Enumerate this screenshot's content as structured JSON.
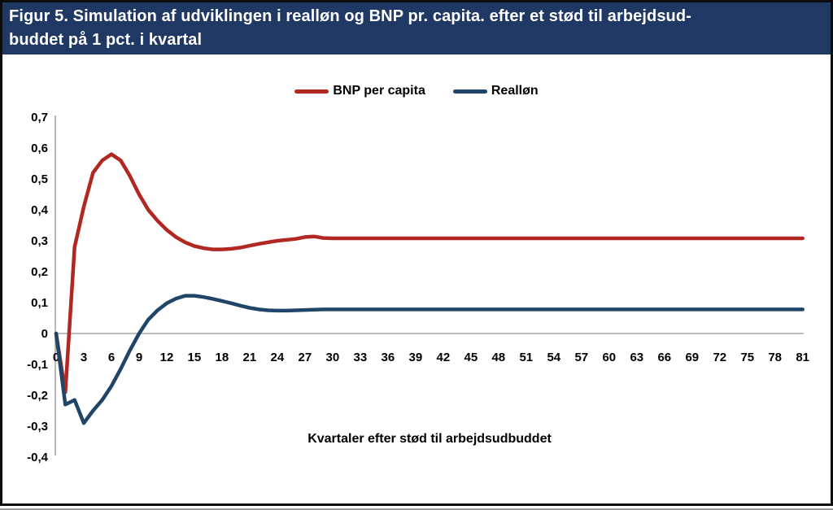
{
  "figure": {
    "title_line1": "Figur 5. Simulation af udviklingen i realløn og BNP pr. capita. efter et stød til arbejdsud-",
    "title_line2": "buddet på 1 pct. i kvartal"
  },
  "colors": {
    "title_bar_background": "#1F3864",
    "title_text": "#ffffff",
    "bnp_line": "#B12822",
    "realloen_line": "#1F4568",
    "axis_line": "#A6A6A6"
  },
  "chart_data": {
    "type": "line",
    "title": "Figur 5. Simulation af udviklingen i realløn og BNP pr. capita. efter et stød til arbejdsudbuddet på 1 pct. i kvartal",
    "xlabel": "Kvartaler efter stød til arbejdsudbuddet",
    "ylabel": "",
    "xlim": [
      0,
      81
    ],
    "ylim": [
      -0.4,
      0.7
    ],
    "grid": false,
    "legend_position": "top-center",
    "decimal_separator": ",",
    "x_ticks": [
      0,
      3,
      6,
      9,
      12,
      15,
      18,
      21,
      24,
      27,
      30,
      33,
      36,
      39,
      42,
      45,
      48,
      51,
      54,
      57,
      60,
      63,
      66,
      69,
      72,
      75,
      78,
      81
    ],
    "y_tick_values": [
      0.7,
      0.6,
      0.5,
      0.4,
      0.3,
      0.2,
      0.1,
      0,
      -0.1,
      -0.2,
      -0.3,
      -0.4
    ],
    "y_tick_labels": [
      "0,7",
      "0,6",
      "0,5",
      "0,4",
      "0,3",
      "0,2",
      "0,1",
      "0",
      "-0,1",
      "-0,2",
      "-0,3",
      "-0,4"
    ],
    "x_step": 1,
    "series": [
      {
        "name": "BNP per capita",
        "color": "#B12822",
        "values": [
          0,
          -0.19,
          0.28,
          0.41,
          0.52,
          0.56,
          0.58,
          0.56,
          0.51,
          0.45,
          0.4,
          0.365,
          0.335,
          0.312,
          0.295,
          0.283,
          0.276,
          0.272,
          0.272,
          0.274,
          0.278,
          0.284,
          0.29,
          0.295,
          0.3,
          0.303,
          0.306,
          0.312,
          0.314,
          0.309,
          0.308,
          0.308,
          0.308,
          0.308,
          0.308,
          0.308,
          0.308,
          0.308,
          0.308,
          0.308,
          0.308,
          0.308,
          0.308,
          0.308,
          0.308,
          0.308,
          0.308,
          0.308,
          0.308,
          0.308,
          0.308,
          0.308,
          0.308,
          0.308,
          0.308,
          0.308,
          0.308,
          0.308,
          0.308,
          0.308,
          0.308,
          0.308,
          0.308,
          0.308,
          0.308,
          0.308,
          0.308,
          0.308,
          0.308,
          0.308,
          0.308,
          0.308,
          0.308,
          0.308,
          0.308,
          0.308,
          0.308,
          0.308,
          0.308,
          0.308,
          0.308,
          0.308
        ]
      },
      {
        "name": "Realløn",
        "color": "#1F4568",
        "values": [
          0,
          -0.23,
          -0.215,
          -0.29,
          -0.25,
          -0.215,
          -0.17,
          -0.115,
          -0.055,
          0,
          0.045,
          0.075,
          0.098,
          0.113,
          0.122,
          0.122,
          0.118,
          0.112,
          0.105,
          0.098,
          0.09,
          0.083,
          0.078,
          0.075,
          0.074,
          0.074,
          0.075,
          0.076,
          0.077,
          0.078,
          0.078,
          0.078,
          0.078,
          0.078,
          0.078,
          0.078,
          0.078,
          0.078,
          0.078,
          0.078,
          0.078,
          0.078,
          0.078,
          0.078,
          0.078,
          0.078,
          0.078,
          0.078,
          0.078,
          0.078,
          0.078,
          0.078,
          0.078,
          0.078,
          0.078,
          0.078,
          0.078,
          0.078,
          0.078,
          0.078,
          0.078,
          0.078,
          0.078,
          0.078,
          0.078,
          0.078,
          0.078,
          0.078,
          0.078,
          0.078,
          0.078,
          0.078,
          0.078,
          0.078,
          0.078,
          0.078,
          0.078,
          0.078,
          0.078,
          0.078,
          0.078,
          0.078
        ]
      }
    ]
  }
}
